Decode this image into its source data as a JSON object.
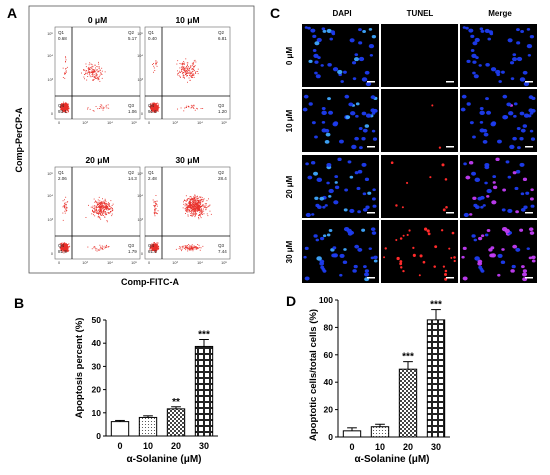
{
  "panel_a": {
    "letter": "A",
    "x_label": "Comp-FITC-A",
    "y_label": "Comp-PerCP-A",
    "plots": [
      {
        "title": "0 μM",
        "quadrants": {
          "q1_label": "Q1",
          "q1": "0.68",
          "q2_label": "Q2",
          "q2": "5.17",
          "q3_label": "Q3",
          "q3": "1.06",
          "q4_label": "Q4",
          "q4": "93.1"
        }
      },
      {
        "title": "10 μM",
        "quadrants": {
          "q1_label": "Q1",
          "q1": "0.40",
          "q2_label": "Q2",
          "q2": "6.81",
          "q3_label": "Q3",
          "q3": "1.20",
          "q4_label": "Q4",
          "q4": "91.6"
        }
      },
      {
        "title": "20 μM",
        "quadrants": {
          "q1_label": "Q1",
          "q1": "2.06",
          "q2_label": "Q2",
          "q2": "14.3",
          "q3_label": "Q3",
          "q3": "1.79",
          "q4_label": "Q4",
          "q4": "81.9"
        }
      },
      {
        "title": "30 μM",
        "quadrants": {
          "q1_label": "Q1",
          "q1": "2.48",
          "q2_label": "Q2",
          "q2": "28.4",
          "q3_label": "Q3",
          "q3": "7.44",
          "q4_label": "Q4",
          "q4": "61.6"
        }
      }
    ],
    "axis_ticks": [
      "0",
      "10³",
      "10⁴",
      "10⁵"
    ]
  },
  "panel_c": {
    "letter": "C",
    "columns": [
      "DAPI",
      "TUNEL",
      "Merge"
    ],
    "rows": [
      "0 μM",
      "10 μM",
      "20 μM",
      "30 μM"
    ],
    "red_density": [
      0.002,
      0.004,
      0.12,
      0.35
    ]
  },
  "colors": {
    "dot_red": "#e8302a",
    "dapi_blue": "#1e3cf0",
    "tunel_red": "#ff2a2a"
  },
  "chart_data": [
    {
      "panel": "B",
      "type": "bar",
      "xlabel": "α-Solanine (μM)",
      "ylabel": "Apoptosis percent (%)",
      "categories": [
        "0",
        "10",
        "20",
        "30"
      ],
      "values": [
        6.2,
        8.0,
        11.7,
        38.6
      ],
      "errors": [
        0.5,
        0.7,
        0.9,
        3.0
      ],
      "significance": [
        "",
        "",
        "**",
        "***"
      ],
      "ylim": [
        0,
        50
      ],
      "yticks": [
        "0",
        "10",
        "20",
        "30",
        "40",
        "50"
      ],
      "patterns": [
        "solid-white",
        "dots",
        "checker-small",
        "checker-large"
      ]
    },
    {
      "panel": "D",
      "type": "bar",
      "xlabel": "α-Solanine (μM)",
      "ylabel": "Apoptotic cells/total cells (%)",
      "categories": [
        "0",
        "10",
        "20",
        "30"
      ],
      "values": [
        4.5,
        7.5,
        49.5,
        85.5
      ],
      "errors": [
        2.2,
        1.8,
        5.5,
        7.5
      ],
      "significance": [
        "",
        "",
        "***",
        "***"
      ],
      "ylim": [
        0,
        100
      ],
      "yticks": [
        "0",
        "20",
        "40",
        "60",
        "80",
        "100"
      ],
      "patterns": [
        "solid-white",
        "dots",
        "checker-small",
        "checker-large"
      ]
    }
  ]
}
